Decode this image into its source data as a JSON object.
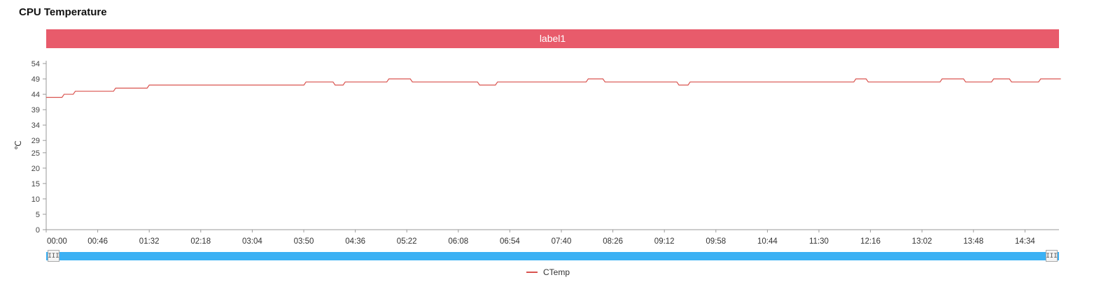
{
  "page": {
    "title": "CPU Temperature"
  },
  "colors": {
    "banner": "#e85b6b",
    "series": "#d9534f",
    "slider": "#3bb1f4",
    "axis": "#999999"
  },
  "chart_data": {
    "type": "line",
    "title": "label1",
    "ylabel": "℃",
    "xlabel": "",
    "ylim": [
      0,
      54
    ],
    "y_ticks": [
      "0",
      "5",
      "10",
      "15",
      "20",
      "25",
      "29",
      "34",
      "39",
      "44",
      "49",
      "54"
    ],
    "x_tick_labels": [
      "00:00",
      "00:46",
      "01:32",
      "02:18",
      "03:04",
      "03:50",
      "04:36",
      "05:22",
      "06:08",
      "06:54",
      "07:40",
      "08:26",
      "09:12",
      "09:58",
      "10:44",
      "11:30",
      "12:16",
      "13:02",
      "13:48",
      "14:34"
    ],
    "grid": false,
    "legend": "bottom-center",
    "series": [
      {
        "name": "CTemp",
        "points": [
          [
            "00:00",
            43
          ],
          [
            "00:16",
            44
          ],
          [
            "00:26",
            45
          ],
          [
            "01:02",
            46
          ],
          [
            "01:32",
            47
          ],
          [
            "03:52",
            48
          ],
          [
            "04:18",
            47
          ],
          [
            "04:27",
            48
          ],
          [
            "05:06",
            49
          ],
          [
            "05:27",
            48
          ],
          [
            "06:27",
            47
          ],
          [
            "06:43",
            48
          ],
          [
            "08:04",
            49
          ],
          [
            "08:19",
            48
          ],
          [
            "09:25",
            47
          ],
          [
            "09:35",
            48
          ],
          [
            "12:03",
            49
          ],
          [
            "12:14",
            48
          ],
          [
            "13:20",
            49
          ],
          [
            "13:41",
            48
          ],
          [
            "14:06",
            49
          ],
          [
            "14:22",
            48
          ],
          [
            "14:48",
            49
          ],
          [
            "15:06",
            49
          ]
        ]
      }
    ]
  }
}
